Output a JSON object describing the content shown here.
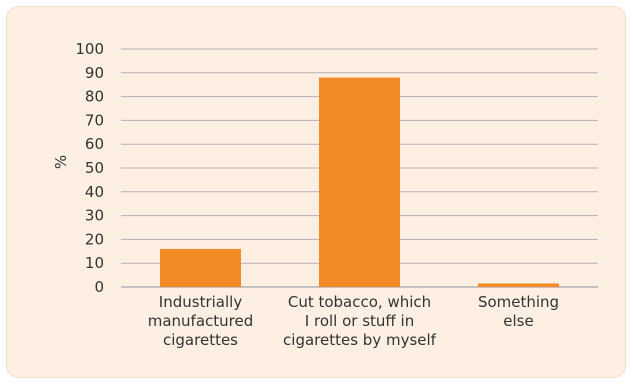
{
  "chart_data": {
    "type": "bar",
    "title": "",
    "xlabel": "",
    "ylabel": "%",
    "ylim": [
      0,
      100
    ],
    "yticks": [
      0,
      10,
      20,
      30,
      40,
      50,
      60,
      70,
      80,
      90,
      100
    ],
    "categories": [
      [
        "Industrially",
        "manufactured",
        "cigarettes"
      ],
      [
        "Cut tobacco, which",
        "I roll or stuff in",
        "cigarettes by myself"
      ],
      [
        "Something",
        "else"
      ]
    ],
    "values": [
      16,
      88,
      1.5
    ],
    "grid": true,
    "legend": "none",
    "colors": {
      "bar": "#f28a26",
      "grid": "#b5b0b8",
      "background": "#fdf0e3"
    }
  }
}
